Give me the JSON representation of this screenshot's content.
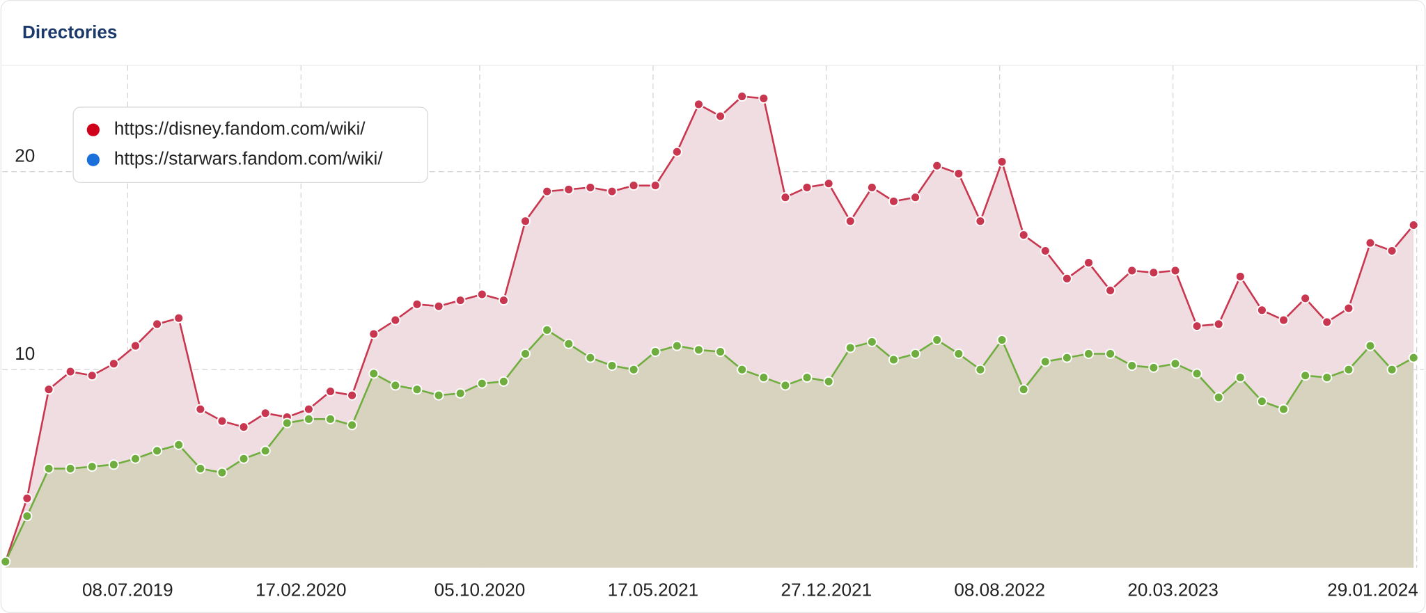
{
  "chart_data": {
    "type": "area",
    "title": "Directories",
    "x": [
      "2019-01-31",
      "2019-02-28",
      "2019-03-28",
      "2019-04-25",
      "2019-05-23",
      "2019-06-20",
      "2019-07-18",
      "2019-08-15",
      "2019-09-12",
      "2019-10-10",
      "2019-11-07",
      "2019-12-05",
      "2020-01-02",
      "2020-01-30",
      "2020-02-27",
      "2020-03-26",
      "2020-04-23",
      "2020-05-21",
      "2020-06-18",
      "2020-07-16",
      "2020-08-13",
      "2020-09-10",
      "2020-10-08",
      "2020-11-05",
      "2020-12-03",
      "2020-12-31",
      "2021-01-28",
      "2021-02-25",
      "2021-03-25",
      "2021-04-22",
      "2021-05-20",
      "2021-06-17",
      "2021-07-15",
      "2021-08-12",
      "2021-09-09",
      "2021-10-07",
      "2021-11-04",
      "2021-12-02",
      "2021-12-30",
      "2022-01-27",
      "2022-02-24",
      "2022-03-24",
      "2022-04-21",
      "2022-05-19",
      "2022-06-16",
      "2022-07-14",
      "2022-08-11",
      "2022-09-08",
      "2022-10-06",
      "2022-11-03",
      "2022-12-01",
      "2022-12-29",
      "2023-01-26",
      "2023-02-23",
      "2023-03-23",
      "2023-04-20",
      "2023-05-18",
      "2023-06-15",
      "2023-07-13",
      "2023-08-10",
      "2023-09-07",
      "2023-10-05",
      "2023-11-02",
      "2023-11-30",
      "2023-12-28",
      "2024-01-25"
    ],
    "series": [
      {
        "name": "https://disney.fandom.com/wiki/",
        "color": "#d0021b",
        "line_color": "#c8374f",
        "fill": "#f0dde1",
        "values": [
          0.3,
          3.5,
          9.0,
          9.9,
          9.7,
          10.3,
          11.2,
          12.3,
          12.6,
          8.0,
          7.4,
          7.1,
          7.8,
          7.6,
          8.0,
          8.9,
          8.7,
          11.8,
          12.5,
          13.3,
          13.2,
          13.5,
          13.8,
          13.5,
          17.5,
          19.0,
          19.1,
          19.2,
          19.0,
          19.3,
          19.3,
          21.0,
          23.4,
          22.8,
          23.8,
          23.7,
          18.7,
          19.2,
          19.4,
          17.5,
          19.2,
          18.5,
          18.7,
          20.3,
          19.9,
          17.5,
          20.5,
          16.8,
          16.0,
          14.6,
          15.4,
          14.0,
          15.0,
          14.9,
          15.0,
          12.2,
          12.3,
          14.7,
          13.0,
          12.5,
          13.6,
          12.4,
          13.1,
          16.4,
          16.0,
          17.3
        ]
      },
      {
        "name": "https://starwars.fandom.com/wiki/",
        "color": "#1a6fdb",
        "line_color": "#6fae3e",
        "fill": "#d8d3bf",
        "values": [
          0.3,
          2.6,
          5.0,
          5.0,
          5.1,
          5.2,
          5.5,
          5.9,
          6.2,
          5.0,
          4.8,
          5.5,
          5.9,
          7.3,
          7.5,
          7.5,
          7.2,
          9.8,
          9.2,
          9.0,
          8.7,
          8.8,
          9.3,
          9.4,
          10.8,
          12.0,
          11.3,
          10.6,
          10.2,
          10.0,
          10.9,
          11.2,
          11.0,
          10.9,
          10.0,
          9.6,
          9.2,
          9.6,
          9.4,
          11.1,
          11.4,
          10.5,
          10.8,
          11.5,
          10.8,
          10.0,
          11.5,
          9.0,
          10.4,
          10.6,
          10.8,
          10.8,
          10.2,
          10.1,
          10.3,
          9.8,
          8.6,
          9.6,
          8.4,
          8.0,
          9.7,
          9.6,
          10.0,
          11.2,
          10.0,
          10.6
        ]
      }
    ],
    "xlim": [
      "2019-01-27",
      "2024-02-07"
    ],
    "xticks": [
      {
        "value": "2019-07-08",
        "label": "08.07.2019"
      },
      {
        "value": "2020-02-17",
        "label": "17.02.2020"
      },
      {
        "value": "2020-10-05",
        "label": "05.10.2020"
      },
      {
        "value": "2021-05-17",
        "label": "17.05.2021"
      },
      {
        "value": "2021-12-27",
        "label": "27.12.2021"
      },
      {
        "value": "2022-08-08",
        "label": "08.08.2022"
      },
      {
        "value": "2023-03-20",
        "label": "20.03.2023"
      },
      {
        "value": "2024-01-29",
        "label": "29.01.2024"
      }
    ],
    "ylim": [
      0,
      25
    ],
    "yticks": [
      10,
      20
    ],
    "grid": true,
    "legend": "top-left"
  }
}
